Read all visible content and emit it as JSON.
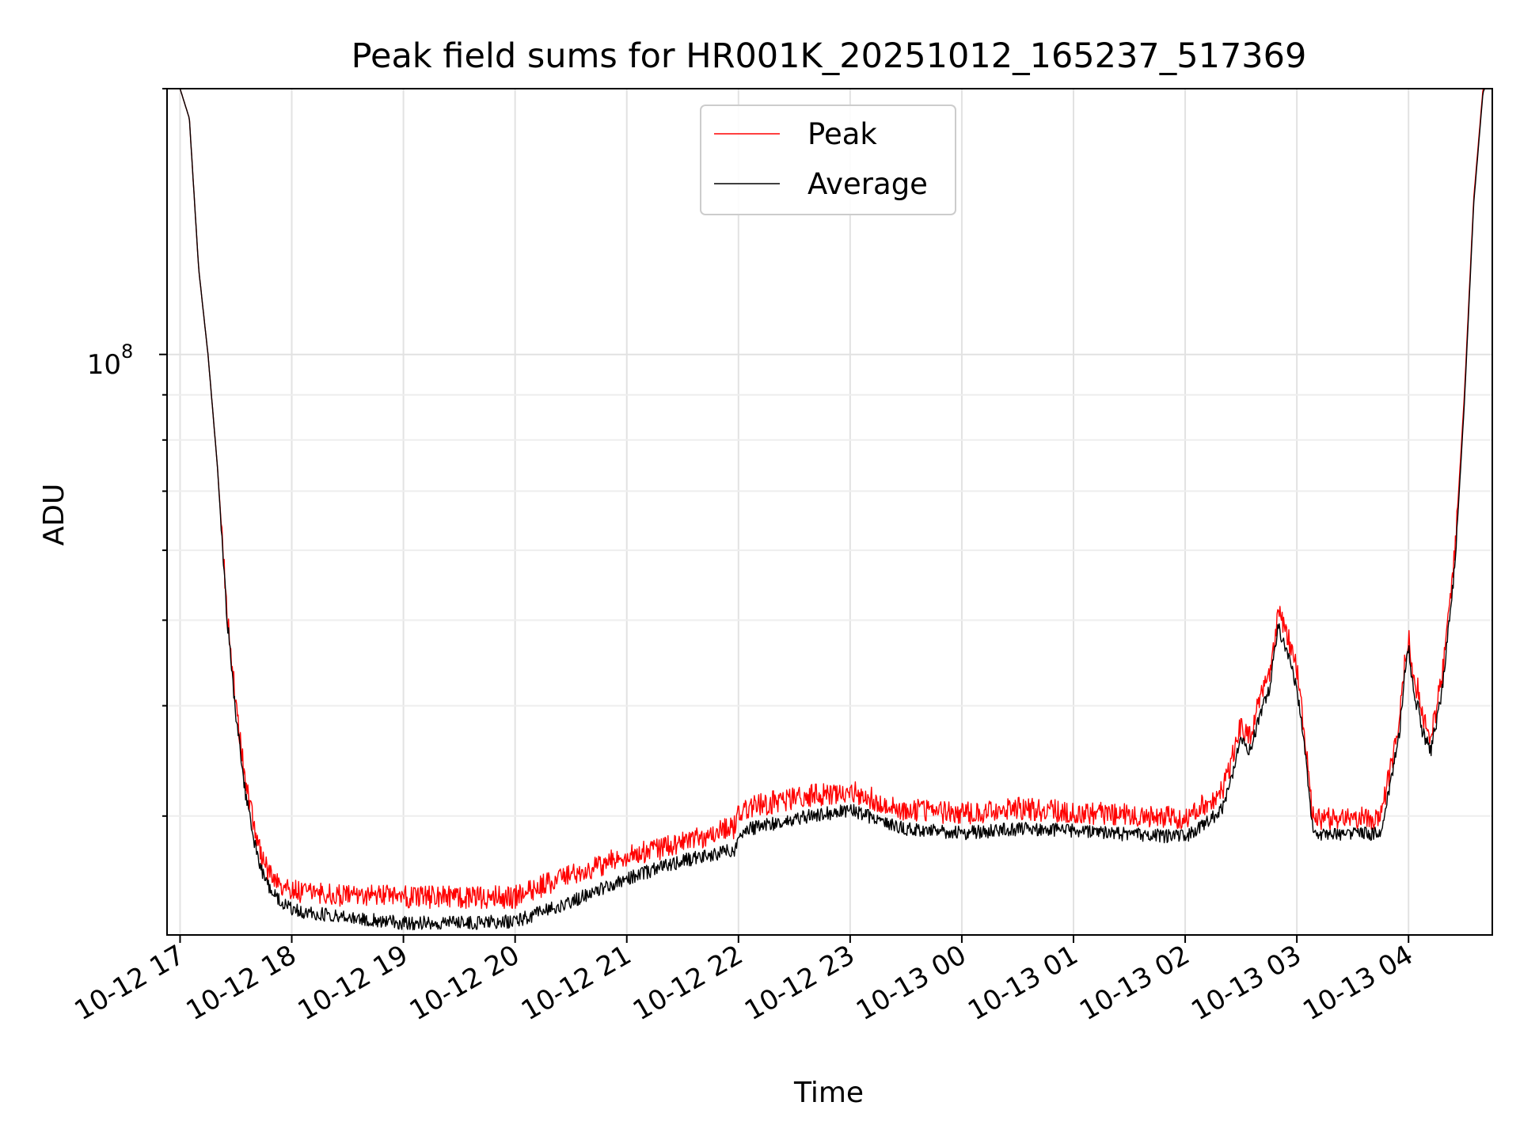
{
  "chart_data": {
    "type": "line",
    "title": "Peak field sums for HR001K_20251012_165237_517369",
    "xlabel": "Time",
    "ylabel": "ADU",
    "y_scale": "log",
    "grid": true,
    "grid_minor": true,
    "legend_placement": "upper center",
    "x_tick_labels": [
      "10-12 17",
      "10-12 18",
      "10-12 19",
      "10-12 20",
      "10-12 21",
      "10-12 22",
      "10-12 23",
      "10-13 00",
      "10-13 01",
      "10-13 02",
      "10-13 03",
      "10-13 04"
    ],
    "y_major_tick": {
      "value": 100000000,
      "base": "10",
      "exponent": "8"
    },
    "ylim": [
      22000000,
      200000000
    ],
    "xlim": [
      "2025-10-12 16:53",
      "2025-10-13 04:45"
    ],
    "series": [
      {
        "name": "Peak",
        "color": "#ff0000",
        "noise": 0.03,
        "x": [
          "2025-10-12 16:52",
          "2025-10-12 17:00",
          "2025-10-12 17:05",
          "2025-10-12 17:10",
          "2025-10-12 17:15",
          "2025-10-12 17:20",
          "2025-10-12 17:25",
          "2025-10-12 17:30",
          "2025-10-12 17:35",
          "2025-10-12 17:40",
          "2025-10-12 17:45",
          "2025-10-12 17:50",
          "2025-10-12 18:00",
          "2025-10-12 18:30",
          "2025-10-12 19:00",
          "2025-10-12 19:30",
          "2025-10-12 20:00",
          "2025-10-12 20:30",
          "2025-10-12 21:00",
          "2025-10-12 21:30",
          "2025-10-12 21:59",
          "2025-10-12 22:00",
          "2025-10-12 22:30",
          "2025-10-12 23:00",
          "2025-10-12 23:30",
          "2025-10-13 00:00",
          "2025-10-13 00:30",
          "2025-10-13 01:00",
          "2025-10-13 01:30",
          "2025-10-13 02:00",
          "2025-10-13 02:20",
          "2025-10-13 02:30",
          "2025-10-13 02:35",
          "2025-10-13 02:40",
          "2025-10-13 02:45",
          "2025-10-13 02:50",
          "2025-10-13 02:55",
          "2025-10-13 03:00",
          "2025-10-13 03:05",
          "2025-10-13 03:08",
          "2025-10-13 03:10",
          "2025-10-13 03:30",
          "2025-10-13 03:45",
          "2025-10-13 03:55",
          "2025-10-13 03:58",
          "2025-10-13 04:00",
          "2025-10-13 04:02",
          "2025-10-13 04:04",
          "2025-10-13 04:05",
          "2025-10-13 04:07",
          "2025-10-13 04:12",
          "2025-10-13 04:18",
          "2025-10-13 04:25",
          "2025-10-13 04:30",
          "2025-10-13 04:35",
          "2025-10-13 04:40",
          "2025-10-13 04:45"
        ],
        "y": [
          210000000,
          200000000,
          185000000,
          125000000,
          100000000,
          75000000,
          52000000,
          40000000,
          33000000,
          29000000,
          26500000,
          25500000,
          24700000,
          24400000,
          24300000,
          24300000,
          24300000,
          25800000,
          27000000,
          28000000,
          29200000,
          30500000,
          31500000,
          32000000,
          30500000,
          30200000,
          30600000,
          30300000,
          30100000,
          29900000,
          32000000,
          38000000,
          37000000,
          41000000,
          43000000,
          51000000,
          48000000,
          44000000,
          36000000,
          30500000,
          29800000,
          29800000,
          29900000,
          38000000,
          45000000,
          48000000,
          44000000,
          41000000,
          42500000,
          39000000,
          37000000,
          43000000,
          60000000,
          90000000,
          150000000,
          200000000,
          210000000
        ]
      },
      {
        "name": "Average",
        "color": "#000000",
        "noise": 0.018,
        "x": [
          "2025-10-12 16:52",
          "2025-10-12 17:00",
          "2025-10-12 17:05",
          "2025-10-12 17:10",
          "2025-10-12 17:15",
          "2025-10-12 17:20",
          "2025-10-12 17:25",
          "2025-10-12 17:30",
          "2025-10-12 17:35",
          "2025-10-12 17:40",
          "2025-10-12 17:45",
          "2025-10-12 17:50",
          "2025-10-12 18:00",
          "2025-10-12 18:30",
          "2025-10-12 19:00",
          "2025-10-12 19:30",
          "2025-10-12 20:00",
          "2025-10-12 20:30",
          "2025-10-12 21:00",
          "2025-10-12 21:30",
          "2025-10-12 21:59",
          "2025-10-12 22:00",
          "2025-10-12 22:30",
          "2025-10-12 23:00",
          "2025-10-12 23:30",
          "2025-10-13 00:00",
          "2025-10-13 00:30",
          "2025-10-13 01:00",
          "2025-10-13 01:30",
          "2025-10-13 02:00",
          "2025-10-13 02:20",
          "2025-10-13 02:30",
          "2025-10-13 02:35",
          "2025-10-13 02:40",
          "2025-10-13 02:45",
          "2025-10-13 02:50",
          "2025-10-13 02:55",
          "2025-10-13 03:00",
          "2025-10-13 03:05",
          "2025-10-13 03:08",
          "2025-10-13 03:10",
          "2025-10-13 03:30",
          "2025-10-13 03:45",
          "2025-10-13 03:55",
          "2025-10-13 03:58",
          "2025-10-13 04:00",
          "2025-10-13 04:02",
          "2025-10-13 04:04",
          "2025-10-13 04:05",
          "2025-10-13 04:07",
          "2025-10-13 04:12",
          "2025-10-13 04:18",
          "2025-10-13 04:25",
          "2025-10-13 04:30",
          "2025-10-13 04:35",
          "2025-10-13 04:40",
          "2025-10-13 04:45"
        ],
        "y": [
          210000000,
          200000000,
          185000000,
          125000000,
          100000000,
          75000000,
          51000000,
          39000000,
          32000000,
          28000000,
          25500000,
          24500000,
          23500000,
          23000000,
          22700000,
          22700000,
          22800000,
          24000000,
          25500000,
          26700000,
          27500000,
          28800000,
          29800000,
          30500000,
          29000000,
          28700000,
          29000000,
          28900000,
          28600000,
          28400000,
          30500000,
          36500000,
          35500000,
          39000000,
          41500000,
          49000000,
          46000000,
          42000000,
          34500000,
          29300000,
          28600000,
          28600000,
          28700000,
          37000000,
          43500000,
          46500000,
          42500000,
          39500000,
          41000000,
          37500000,
          35500000,
          41500000,
          58000000,
          88000000,
          148000000,
          198000000,
          210000000
        ]
      }
    ]
  }
}
